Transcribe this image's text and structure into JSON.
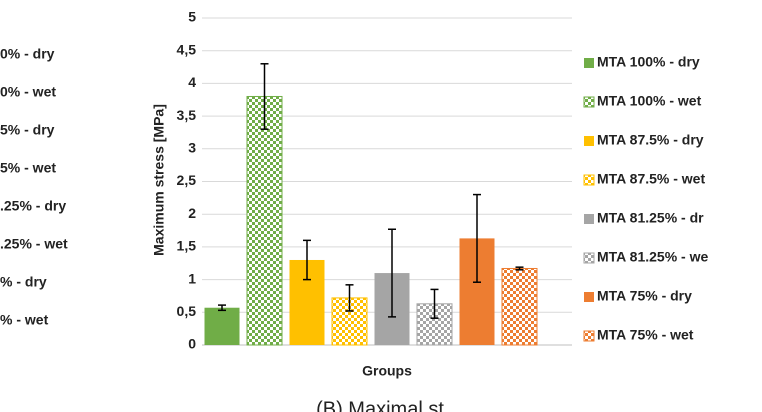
{
  "chart_data": {
    "type": "bar",
    "ylabel": "Maximum stress [MPa]",
    "xlabel": "Groups",
    "caption": "(B) Maximal st",
    "ylim": [
      0,
      5
    ],
    "yticks": [
      0,
      {
        "value": 0.5,
        "label": "0,5"
      },
      1,
      {
        "value": 1.5,
        "label": "1,5"
      },
      2,
      {
        "value": 2.5,
        "label": "2,5"
      },
      3,
      {
        "value": 3.5,
        "label": "3,5"
      },
      4,
      {
        "value": 4.5,
        "label": "4,5"
      },
      5
    ],
    "grid": true,
    "legend": "right",
    "left_legend": [
      "0% - dry",
      "0% - wet",
      "5% - dry",
      "5% - wet",
      ".25% - dry",
      ".25% - wet",
      "% - dry",
      "% - wet"
    ],
    "series": [
      {
        "name": "MTA 100% - dry",
        "color": "#70ad47",
        "pattern": "solid",
        "values": [
          0.57
        ],
        "errors": [
          0.04
        ]
      },
      {
        "name": "MTA 100% - wet",
        "color": "#70ad47",
        "pattern": "checker",
        "values": [
          3.8
        ],
        "errors": [
          0.5
        ]
      },
      {
        "name": "MTA 87.5% - dry",
        "color": "#ffc000",
        "pattern": "solid",
        "values": [
          1.3
        ],
        "errors": [
          0.3
        ]
      },
      {
        "name": "MTA 87.5% - wet",
        "color": "#ffc000",
        "pattern": "checker",
        "values": [
          0.72
        ],
        "errors": [
          0.2
        ]
      },
      {
        "name": "MTA 81.25% - dr",
        "color": "#a5a5a5",
        "pattern": "solid",
        "values": [
          1.1
        ],
        "errors": [
          0.67
        ]
      },
      {
        "name": "MTA 81.25% - we",
        "color": "#a5a5a5",
        "pattern": "checker",
        "values": [
          0.63
        ],
        "errors": [
          0.22
        ]
      },
      {
        "name": "MTA 75% - dry",
        "color": "#ed7d31",
        "pattern": "solid",
        "values": [
          1.63
        ],
        "errors": [
          0.67
        ]
      },
      {
        "name": "MTA 75% - wet",
        "color": "#ed7d31",
        "pattern": "checker",
        "values": [
          1.17
        ],
        "errors": [
          0.02
        ]
      }
    ]
  }
}
